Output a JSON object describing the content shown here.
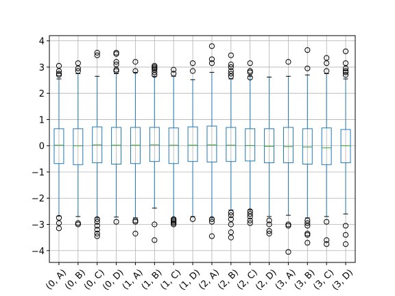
{
  "chart_data": {
    "type": "box",
    "title": "",
    "xlabel": "",
    "ylabel": "",
    "ylim": [
      -4.45,
      4.2
    ],
    "yticks": [
      -4,
      -3,
      -2,
      -1,
      0,
      1,
      2,
      3,
      4
    ],
    "ytick_labels": [
      "−4",
      "−3",
      "−2",
      "−1",
      "0",
      "1",
      "2",
      "3",
      "4"
    ],
    "grid": true,
    "categories": [
      "(0, A)",
      "(0, B)",
      "(0, C)",
      "(0, D)",
      "(1, A)",
      "(1, B)",
      "(1, C)",
      "(1, D)",
      "(2, A)",
      "(2, B)",
      "(2, C)",
      "(2, D)",
      "(3, A)",
      "(3, B)",
      "(3, C)",
      "(3, D)"
    ],
    "boxes": [
      {
        "low": -2.68,
        "q1": -0.68,
        "median": 0.02,
        "q3": 0.65,
        "high": 2.55,
        "outliers": [
          2.7,
          2.75,
          2.85,
          3.05,
          -2.75,
          -2.95,
          -3.15
        ]
      },
      {
        "low": -2.7,
        "q1": -0.72,
        "median": 0.0,
        "q3": 0.65,
        "high": 2.75,
        "outliers": [
          2.85,
          2.95,
          3.15,
          -2.95,
          -3.0
        ]
      },
      {
        "low": -2.75,
        "q1": -0.65,
        "median": 0.03,
        "q3": 0.72,
        "high": 2.65,
        "outliers": [
          3.45,
          3.55,
          -2.8,
          -2.9,
          -3.05,
          -3.2,
          -3.35,
          -3.45
        ]
      },
      {
        "low": -2.72,
        "q1": -0.7,
        "median": 0.02,
        "q3": 0.7,
        "high": 2.75,
        "outliers": [
          2.85,
          2.9,
          3.1,
          3.2,
          3.5,
          3.55,
          -2.9
        ]
      },
      {
        "low": -2.75,
        "q1": -0.68,
        "median": 0.02,
        "q3": 0.7,
        "high": 2.8,
        "outliers": [
          2.85,
          3.2,
          -2.85,
          -2.9,
          -3.35
        ]
      },
      {
        "low": -2.38,
        "q1": -0.6,
        "median": 0.03,
        "q3": 0.7,
        "high": 2.65,
        "outliers": [
          2.7,
          2.8,
          2.9,
          2.95,
          3.0,
          3.05,
          -3.0,
          -3.6
        ]
      },
      {
        "low": -2.75,
        "q1": -0.68,
        "median": 0.02,
        "q3": 0.68,
        "high": 2.65,
        "outliers": [
          2.75,
          2.9,
          -2.8,
          -2.85,
          -2.9,
          -2.95,
          -3.0
        ]
      },
      {
        "low": -2.7,
        "q1": -0.6,
        "median": 0.02,
        "q3": 0.72,
        "high": 2.52,
        "outliers": [
          2.85,
          3.15,
          -2.8
        ]
      },
      {
        "low": -2.75,
        "q1": -0.62,
        "median": 0.03,
        "q3": 0.75,
        "high": 2.8,
        "outliers": [
          3.15,
          3.3,
          3.8,
          -2.8,
          -2.9,
          -3.45
        ]
      },
      {
        "low": -2.45,
        "q1": -0.6,
        "median": 0.02,
        "q3": 0.7,
        "high": 2.55,
        "outliers": [
          2.65,
          2.75,
          2.85,
          3.0,
          3.1,
          3.45,
          -2.55,
          -2.65,
          -2.8,
          -3.0,
          -3.3,
          -3.5
        ]
      },
      {
        "low": -2.45,
        "q1": -0.58,
        "median": 0.01,
        "q3": 0.65,
        "high": 2.65,
        "outliers": [
          2.6,
          2.8,
          2.85,
          3.15,
          -2.5,
          -2.6,
          -2.7,
          -2.85,
          -2.95
        ]
      },
      {
        "low": -2.7,
        "q1": -0.65,
        "median": -0.02,
        "q3": 0.65,
        "high": 2.62,
        "outliers": [
          -2.85,
          -3.0,
          -3.25,
          -3.35
        ]
      },
      {
        "low": -2.65,
        "q1": -0.65,
        "median": -0.03,
        "q3": 0.7,
        "high": 2.65,
        "outliers": [
          3.2,
          -3.0,
          -3.05,
          -4.05
        ]
      },
      {
        "low": -2.75,
        "q1": -0.7,
        "median": -0.05,
        "q3": 0.65,
        "high": 2.7,
        "outliers": [
          2.95,
          3.65,
          -2.85,
          -2.95,
          -3.05,
          -3.35,
          -3.4,
          -3.7
        ]
      },
      {
        "low": -2.7,
        "q1": -0.72,
        "median": -0.08,
        "q3": 0.68,
        "high": 2.75,
        "outliers": [
          2.85,
          3.15,
          3.35,
          -2.9,
          -3.6,
          -3.75
        ]
      },
      {
        "low": -2.6,
        "q1": -0.65,
        "median": 0.0,
        "q3": 0.62,
        "high": 2.55,
        "outliers": [
          2.7,
          2.8,
          2.85,
          2.95,
          3.15,
          3.6,
          -3.05,
          -3.4,
          -3.75
        ]
      }
    ],
    "colors": {
      "box": "#1f77b4",
      "median": "#2ca02c",
      "whisker": "#1f77b4",
      "cap": "#000000",
      "flier": "#000000",
      "grid": "#b0b0b0",
      "axis": "#000000"
    }
  }
}
